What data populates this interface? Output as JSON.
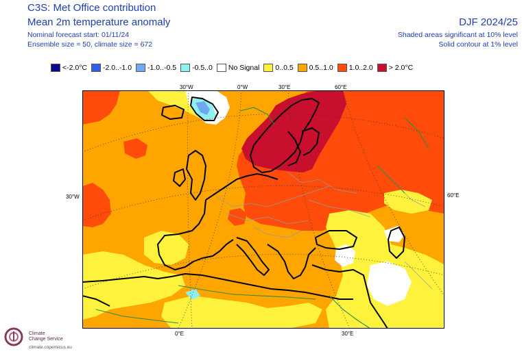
{
  "header": {
    "title": "C3S: Met Office contribution",
    "subtitle": "Mean 2m temperature anomaly",
    "forecast_start": "Nominal forecast start: 01/11/24",
    "ensemble": "Ensemble size = 50, climate size = 672",
    "season": "DJF 2024/25",
    "shading_note": "Shaded areas significant at 10% level",
    "contour_note": "Solid contour at 1% level"
  },
  "legend": {
    "items": [
      {
        "label": "<-2.0°C",
        "color": "#0a0a8c"
      },
      {
        "label": "-2.0..-1.0",
        "color": "#2f5fe8"
      },
      {
        "label": "-1.0..-0.5",
        "color": "#6fa8f0"
      },
      {
        "label": "-0.5..0",
        "color": "#8ff0f0"
      },
      {
        "label": "No Signal",
        "color": "#ffffff"
      },
      {
        "label": "0..0.5",
        "color": "#fff23c"
      },
      {
        "label": "0.5..1.0",
        "color": "#ffa500"
      },
      {
        "label": "1.0..2.0",
        "color": "#ff4c0a"
      },
      {
        "label": "> 2.0°C",
        "color": "#c8102e"
      }
    ]
  },
  "map": {
    "top_labels": [
      "30°W",
      "0°W",
      "30°E",
      "60°E"
    ],
    "left_label": "30°W",
    "right_label": "60°E",
    "bottom_labels": [
      "0°E",
      "30°E"
    ]
  },
  "logo": {
    "line1": "Climate",
    "line2": "Change Service",
    "url": "climate.copernicus.eu"
  }
}
